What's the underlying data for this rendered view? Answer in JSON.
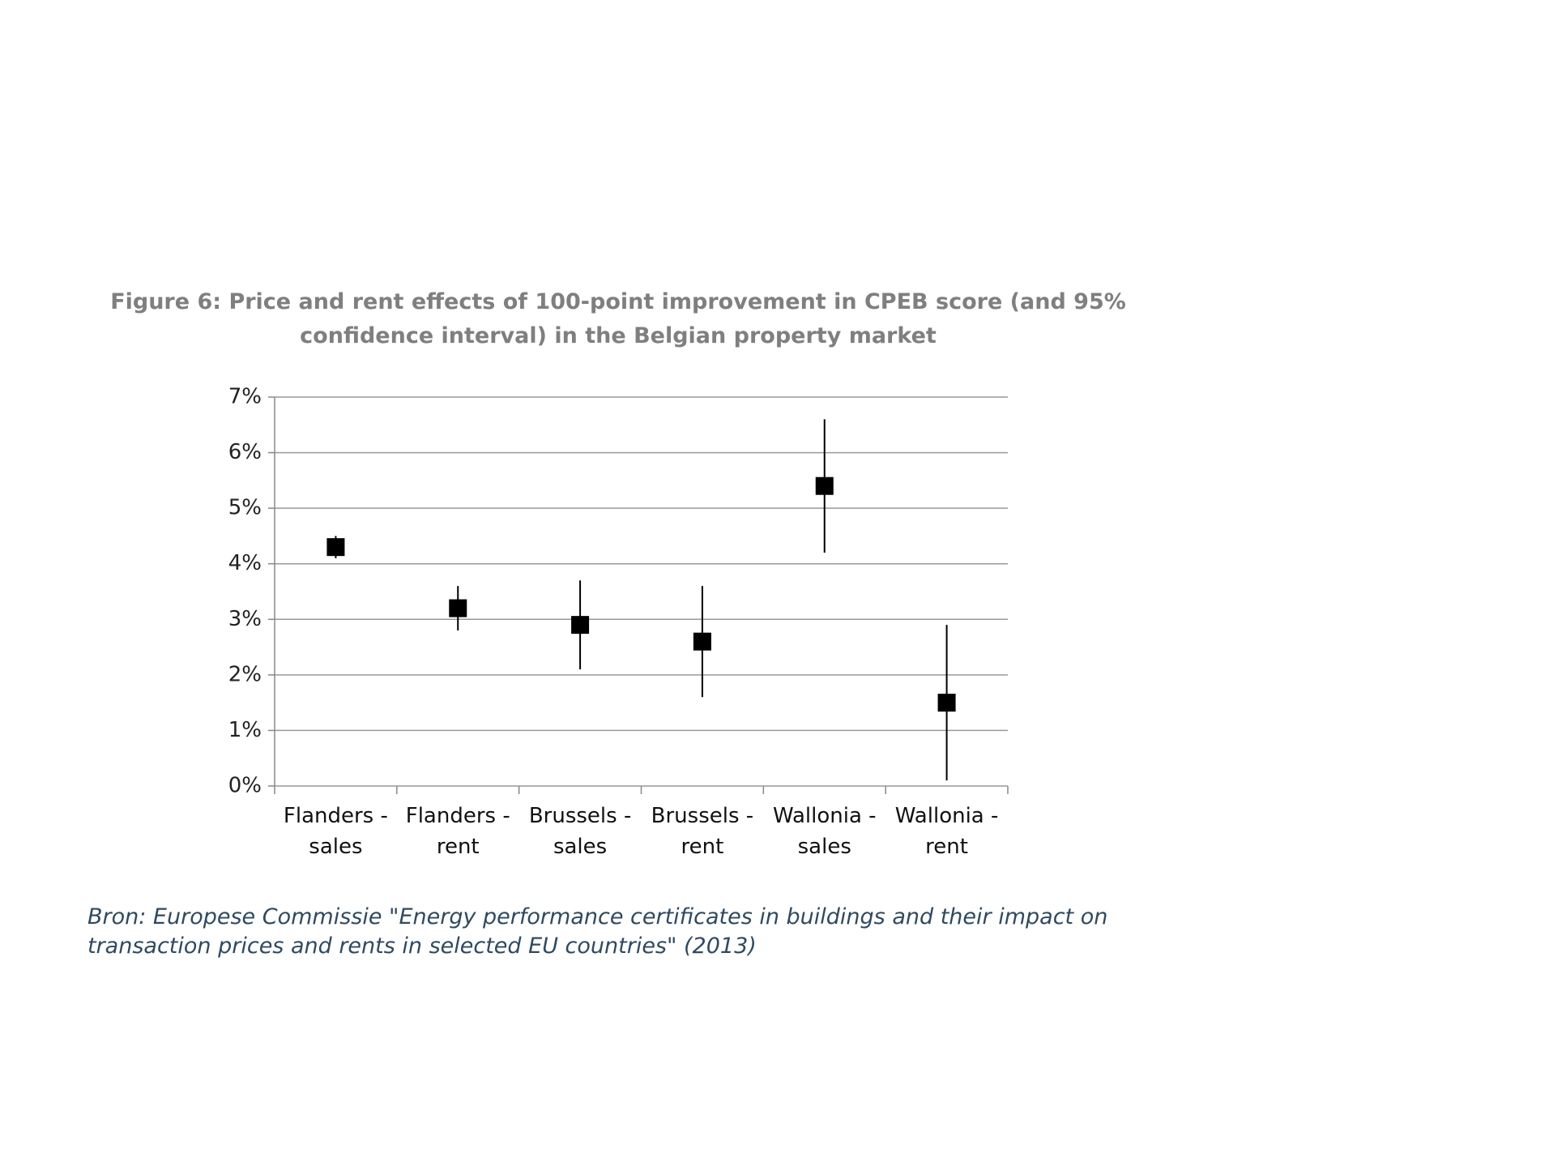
{
  "chart_data": {
    "type": "errorbar",
    "title": "Figure 6: Price and rent effects of 100-point improvement in CPEB score (and 95% confidence interval) in the Belgian property market",
    "categories": [
      "Flanders - sales",
      "Flanders - rent",
      "Brussels - sales",
      "Brussels - rent",
      "Wallonia - sales",
      "Wallonia - rent"
    ],
    "values": [
      4.3,
      3.2,
      2.9,
      2.6,
      5.4,
      1.5
    ],
    "errors": [
      0.2,
      0.4,
      0.8,
      1.0,
      1.2,
      1.4
    ],
    "color": "#000000",
    "ylim": [
      0,
      7
    ],
    "yticks": [
      {
        "value": 0,
        "label": "0%"
      },
      {
        "value": 1,
        "label": "1%"
      },
      {
        "value": 2,
        "label": "2%"
      },
      {
        "value": 3,
        "label": "3%"
      },
      {
        "value": 4,
        "label": "4%"
      },
      {
        "value": 5,
        "label": "5%"
      },
      {
        "value": 6,
        "label": "6%"
      },
      {
        "value": 7,
        "label": "7%"
      }
    ],
    "grid": true,
    "source": "Bron: Europese Commissie \"Energy performance certificates in buildings and their impact on transaction prices and rents in selected EU countries\" (2013)"
  }
}
